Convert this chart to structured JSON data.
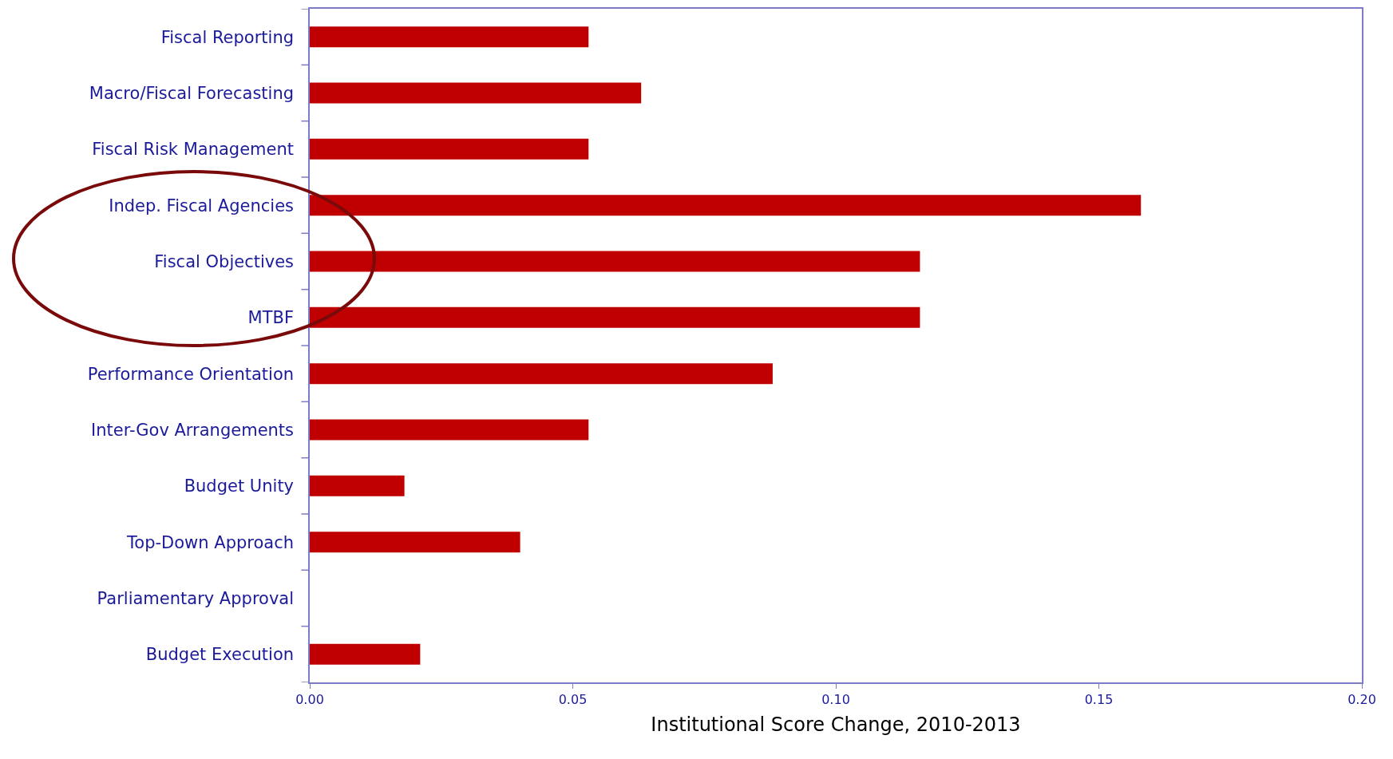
{
  "chart_data": {
    "type": "bar",
    "orientation": "horizontal",
    "xlabel": "Institutional Score Change, 2010-2013",
    "categories": [
      "Fiscal Reporting",
      "Macro/Fiscal Forecasting",
      "Fiscal Risk Management",
      "Indep. Fiscal Agencies",
      "Fiscal Objectives",
      "MTBF",
      "Performance Orientation",
      "Inter-Gov Arrangements",
      "Budget Unity",
      "Top-Down Approach",
      "Parliamentary Approval",
      "Budget Execution"
    ],
    "values": [
      0.053,
      0.063,
      0.053,
      0.158,
      0.116,
      0.116,
      0.088,
      0.053,
      0.018,
      0.04,
      0,
      0.021
    ],
    "color": "#c00000",
    "xlim": [
      0,
      0.2
    ],
    "xticks": [
      {
        "value": 0,
        "label": "0.00"
      },
      {
        "value": 0.05,
        "label": "0.05"
      },
      {
        "value": 0.1,
        "label": "0.10"
      },
      {
        "value": 0.15,
        "label": "0.15"
      },
      {
        "value": 0.2,
        "label": "0.20"
      }
    ],
    "grid": false
  }
}
